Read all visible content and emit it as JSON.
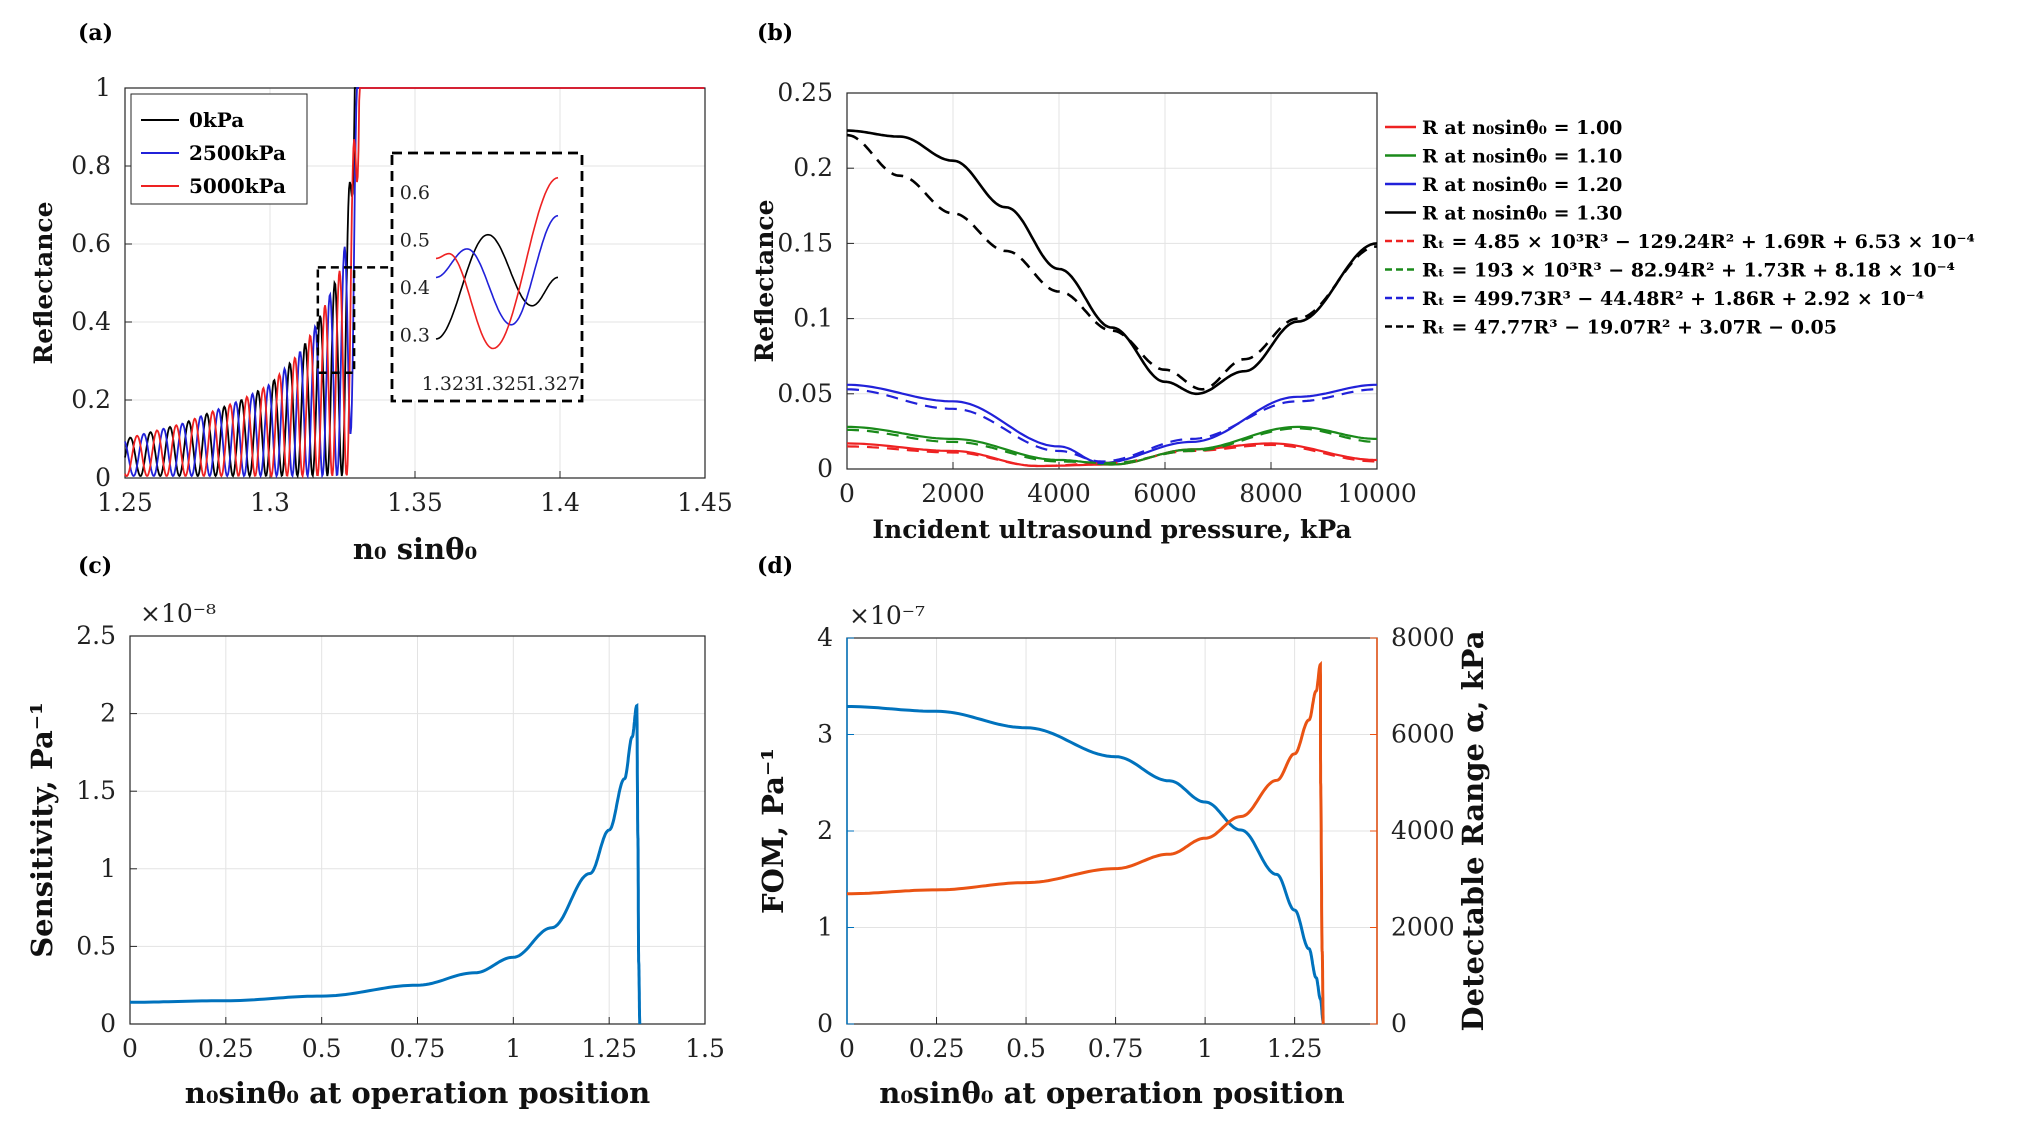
{
  "colors": {
    "black": "#000000",
    "blue": "#2121d9",
    "red": "#ee2222",
    "green": "#1a8a1a",
    "matblue": "#0072bd",
    "matorange": "#ea5313"
  },
  "chart_data": [
    {
      "type": "line",
      "panel_label": "(a)",
      "xlabel": "n₀ sinθ₀",
      "ylabel": "Reflectance",
      "xlim": [
        1.25,
        1.45
      ],
      "ylim": [
        0,
        1
      ],
      "x_ticks": [
        "1.25",
        "1.3",
        "1.35",
        "1.4",
        "1.45"
      ],
      "y_ticks": [
        "0",
        "0.2",
        "0.4",
        "0.6",
        "0.8",
        "1"
      ],
      "legend": [
        "0kPa",
        "2500kPa",
        "5000kPa"
      ],
      "series": [
        {
          "name": "0kPa",
          "color": "#000000",
          "x": [
            1.25,
            1.27,
            1.29,
            1.3,
            1.31,
            1.315,
            1.32,
            1.325,
            1.327,
            1.329,
            1.331,
            1.45
          ],
          "envelope_max": [
            0.1,
            0.14,
            0.2,
            0.24,
            0.32,
            0.38,
            0.46,
            0.55,
            0.68,
            0.85,
            1.0,
            1.0
          ],
          "oscillating": true
        },
        {
          "name": "2500kPa",
          "color": "#2121d9",
          "oscillating": true
        },
        {
          "name": "5000kPa",
          "color": "#ee2222",
          "oscillating": true
        }
      ],
      "inset": {
        "xlim": [
          1.3225,
          1.3272
        ],
        "ylim": [
          0.25,
          0.64
        ],
        "x_ticks": [
          "1.323",
          "1.325",
          "1.327"
        ],
        "y_ticks": [
          "0.3",
          "0.4",
          "0.5",
          "0.6"
        ]
      }
    },
    {
      "type": "line",
      "panel_label": "(b)",
      "xlabel": "Incident ultrasound pressure, kPa",
      "ylabel": "Reflectance",
      "xlim": [
        0,
        10000
      ],
      "ylim": [
        0,
        0.25
      ],
      "x_ticks": [
        "0",
        "2000",
        "4000",
        "6000",
        "8000",
        "10000"
      ],
      "y_ticks": [
        "0",
        "0.05",
        "0.1",
        "0.15",
        "0.2",
        "0.25"
      ],
      "series": [
        {
          "name": "R at n₀sinθ₀ = 1.00",
          "color": "#ee2222",
          "dash": false,
          "x": [
            0,
            2000,
            3600,
            5000,
            6500,
            8000,
            10000
          ],
          "y": [
            0.017,
            0.012,
            0.002,
            0.003,
            0.013,
            0.017,
            0.006
          ]
        },
        {
          "name": "R at n₀sinθ₀ = 1.10",
          "color": "#1a8a1a",
          "dash": false,
          "x": [
            0,
            2000,
            4000,
            5000,
            6500,
            8500,
            10000
          ],
          "y": [
            0.028,
            0.02,
            0.006,
            0.003,
            0.013,
            0.028,
            0.02
          ]
        },
        {
          "name": "R at n₀sinθ₀ = 1.20",
          "color": "#2121d9",
          "dash": false,
          "x": [
            0,
            2000,
            4000,
            4800,
            6500,
            8500,
            10000
          ],
          "y": [
            0.056,
            0.045,
            0.015,
            0.004,
            0.018,
            0.048,
            0.056
          ]
        },
        {
          "name": "R at n₀sinθ₀ = 1.30",
          "color": "#000000",
          "dash": false,
          "x": [
            0,
            1000,
            2000,
            3000,
            4000,
            5000,
            6000,
            6600,
            7500,
            8500,
            10000
          ],
          "y": [
            0.225,
            0.221,
            0.205,
            0.174,
            0.133,
            0.094,
            0.058,
            0.05,
            0.065,
            0.098,
            0.15
          ]
        },
        {
          "name": "Rₜ = 4.85 × 10³R³ − 129.24R² + 1.69R + 6.53 × 10⁻⁴",
          "color": "#ee2222",
          "dash": true,
          "x": [
            0,
            2000,
            3600,
            5000,
            6500,
            8000,
            10000
          ],
          "y": [
            0.015,
            0.011,
            0.002,
            0.004,
            0.012,
            0.016,
            0.005
          ]
        },
        {
          "name": "Rₜ = 193 × 10³R³ − 82.94R² + 1.73R + 8.18 × 10⁻⁴",
          "color": "#1a8a1a",
          "dash": true,
          "x": [
            0,
            2000,
            4000,
            5000,
            6500,
            8500,
            10000
          ],
          "y": [
            0.026,
            0.018,
            0.005,
            0.004,
            0.012,
            0.027,
            0.018
          ]
        },
        {
          "name": "Rₜ = 499.73R³ − 44.48R² + 1.86R + 2.92 × 10⁻⁴",
          "color": "#2121d9",
          "dash": true,
          "x": [
            0,
            2000,
            4000,
            4800,
            6500,
            8500,
            10000
          ],
          "y": [
            0.053,
            0.04,
            0.012,
            0.005,
            0.02,
            0.045,
            0.053
          ]
        },
        {
          "name": "Rₜ = 47.77R³ − 19.07R² + 3.07R − 0.05",
          "color": "#000000",
          "dash": true,
          "x": [
            0,
            1000,
            2000,
            3000,
            4000,
            5000,
            6000,
            6700,
            7500,
            8500,
            10000
          ],
          "y": [
            0.222,
            0.195,
            0.17,
            0.145,
            0.118,
            0.092,
            0.066,
            0.053,
            0.073,
            0.1,
            0.148
          ]
        }
      ]
    },
    {
      "type": "line",
      "panel_label": "(c)",
      "xlabel": "n₀sinθ₀ at  operation position",
      "ylabel": "Sensitivity, Pa⁻¹",
      "xlim": [
        0,
        1.5
      ],
      "ylim": [
        0,
        2.5
      ],
      "y_exponent": "×10⁻⁸",
      "x_ticks": [
        "0",
        "0.25",
        "0.5",
        "0.75",
        "1",
        "1.25",
        "1.5"
      ],
      "y_ticks": [
        "0",
        "0.5",
        "1",
        "1.5",
        "2",
        "2.5"
      ],
      "series": [
        {
          "name": "Sensitivity",
          "color": "#0072bd",
          "x": [
            0,
            0.25,
            0.5,
            0.75,
            0.9,
            1.0,
            1.1,
            1.2,
            1.25,
            1.29,
            1.31,
            1.322,
            1.325,
            1.327,
            1.33
          ],
          "y": [
            0.14,
            0.15,
            0.18,
            0.25,
            0.33,
            0.43,
            0.62,
            0.97,
            1.25,
            1.58,
            1.85,
            2.05,
            1.2,
            0.4,
            0
          ]
        }
      ]
    },
    {
      "type": "line",
      "panel_label": "(d)",
      "xlabel": "n₀sinθ₀ at  operation position",
      "ylabel": "FOM, Pa⁻¹",
      "ylabel_right": "Detectable Range α, kPa",
      "xlim": [
        0,
        1.48
      ],
      "ylim": [
        0,
        4
      ],
      "ylim_right": [
        0,
        8000
      ],
      "y_exponent": "×10⁻⁷",
      "x_ticks": [
        "0",
        "0.25",
        "0.5",
        "0.75",
        "1",
        "1.25"
      ],
      "y_ticks": [
        "0",
        "1",
        "2",
        "3",
        "4"
      ],
      "y_ticks_right": [
        "0",
        "2000",
        "4000",
        "6000",
        "8000"
      ],
      "series": [
        {
          "name": "FOM",
          "color": "#0072bd",
          "axis": "left",
          "x": [
            0,
            0.25,
            0.5,
            0.75,
            0.9,
            1.0,
            1.1,
            1.2,
            1.25,
            1.29,
            1.31,
            1.322,
            1.33
          ],
          "y": [
            3.29,
            3.24,
            3.07,
            2.77,
            2.52,
            2.3,
            2.01,
            1.55,
            1.18,
            0.78,
            0.48,
            0.26,
            0.02
          ]
        },
        {
          "name": "Detectable Range",
          "color": "#ea5313",
          "axis": "right",
          "x": [
            0,
            0.25,
            0.5,
            0.75,
            0.9,
            1.0,
            1.1,
            1.2,
            1.25,
            1.29,
            1.31,
            1.322,
            1.3225,
            1.327,
            1.33
          ],
          "y": [
            2700,
            2780,
            2930,
            3220,
            3520,
            3850,
            4300,
            5050,
            5600,
            6300,
            6900,
            7450,
            5000,
            1500,
            0
          ]
        }
      ]
    }
  ]
}
